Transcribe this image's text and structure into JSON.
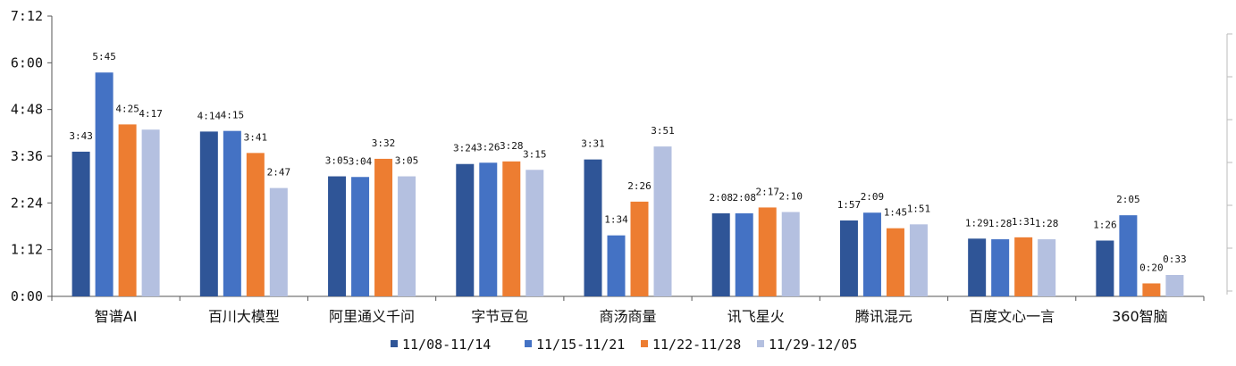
{
  "chart_data": {
    "type": "bar",
    "categories": [
      "智谱AI",
      "百川大模型",
      "阿里通义千问",
      "字节豆包",
      "商汤商量",
      "讯飞星火",
      "腾讯混元",
      "百度文心一言",
      "360智脑"
    ],
    "series": [
      {
        "name": "11/08-11/14",
        "color": "#2f5597",
        "values": [
          "3:43",
          "4:14",
          "3:05",
          "3:24",
          "3:31",
          "2:08",
          "1:57",
          "1:29",
          "1:26"
        ]
      },
      {
        "name": "11/15-11/21",
        "color": "#4472c4",
        "values": [
          "5:45",
          "4:15",
          "3:04",
          "3:26",
          "1:34",
          "2:08",
          "2:09",
          "1:28",
          "2:05"
        ]
      },
      {
        "name": "11/22-11/28",
        "color": "#ed7d31",
        "values": [
          "4:25",
          "3:41",
          "3:32",
          "3:28",
          "2:26",
          "2:17",
          "1:45",
          "1:31",
          "0:20"
        ]
      },
      {
        "name": "11/29-12/05",
        "color": "#b4c0e0",
        "values": [
          "4:17",
          "2:47",
          "3:05",
          "3:15",
          "3:51",
          "2:10",
          "1:51",
          "1:28",
          "0:33"
        ]
      }
    ],
    "yticks": [
      "0:00",
      "1:12",
      "2:24",
      "3:36",
      "4:48",
      "6:00",
      "7:12"
    ],
    "ylim": [
      "0:00",
      "7:12"
    ],
    "grid": false,
    "legend_position": "bottom"
  }
}
